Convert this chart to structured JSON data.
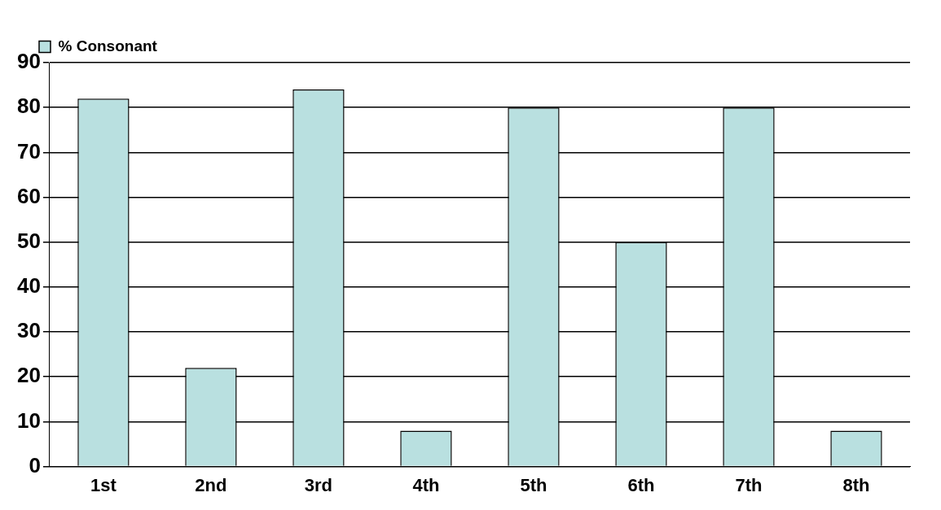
{
  "chart_data": {
    "type": "bar",
    "categories": [
      "1st",
      "2nd",
      "3rd",
      "4th",
      "5th",
      "6th",
      "7th",
      "8th"
    ],
    "series": [
      {
        "name": "% Consonant",
        "color": "#b9e0e0",
        "values": [
          82,
          22,
          84,
          8,
          80,
          50,
          80,
          8
        ]
      }
    ],
    "ylim": [
      0,
      90
    ],
    "yticks": [
      0,
      10,
      20,
      30,
      40,
      50,
      60,
      70,
      80,
      90
    ],
    "grid": "y",
    "legend": "top left"
  }
}
